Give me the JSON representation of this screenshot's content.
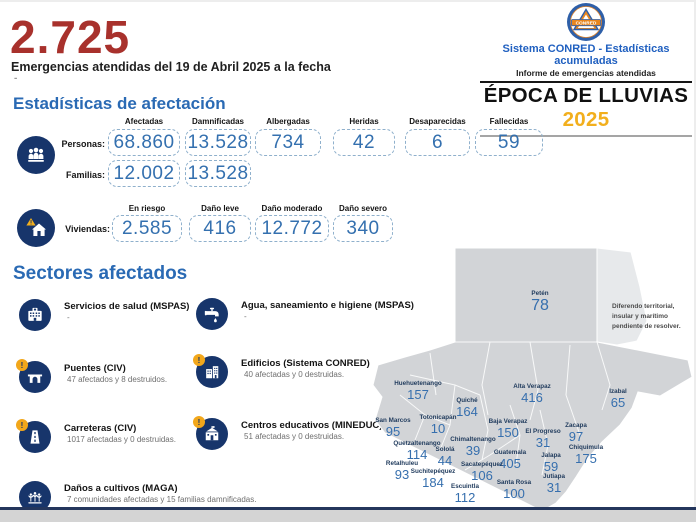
{
  "header": {
    "big_number": "2.725",
    "subtitle": "Emergencias atendidas del 19 de Abril 2025 a la fecha",
    "tiny_dash": "-",
    "logo_text": "CONRED",
    "org_line": "Sistema CONRED - Estadísticas acumuladas",
    "report_line": "Informe de emergencias atendidas",
    "season_title": "ÉPOCA DE LLUVIAS",
    "season_year": "2025"
  },
  "stats": {
    "heading": "Estadísticas de afectación",
    "personas_label": "Personas:",
    "familias_label": "Familias:",
    "viviendas_label": "Viviendas:",
    "personas_columns": [
      "Afectadas",
      "Damnificadas",
      "Albergadas",
      "Heridas",
      "Desaparecidas",
      "Fallecidas"
    ],
    "personas_values": [
      "68.860",
      "13.528",
      "734",
      "42",
      "6",
      "59"
    ],
    "familias_values": [
      "12.002",
      "13.528"
    ],
    "viviendas_columns": [
      "En riesgo",
      "Daño leve",
      "Daño moderado",
      "Daño severo"
    ],
    "viviendas_values": [
      "2.585",
      "416",
      "12.772",
      "340"
    ]
  },
  "sectors": {
    "heading": "Sectores afectados",
    "items": [
      {
        "title": "Servicios de salud (MSPAS)",
        "subtitle": "-",
        "icon": "hospital-icon"
      },
      {
        "title": "Agua, saneamiento e higiene (MSPAS)",
        "subtitle": "-",
        "icon": "faucet-icon"
      },
      {
        "title": "Puentes (CIV)",
        "subtitle": "47 afectados y 8 destruidos.",
        "icon": "bridge-icon"
      },
      {
        "title": "Edificios (Sistema CONRED)",
        "subtitle": "40 afectadas y 0 destruidas.",
        "icon": "building-icon"
      },
      {
        "title": "Carreteras (CIV)",
        "subtitle": "1017 afectadas y 0 destruidas.",
        "icon": "road-icon"
      },
      {
        "title": "Centros educativos (MINEDUC)",
        "subtitle": "51 afectadas y 0 destruidas.",
        "icon": "school-icon"
      },
      {
        "title": "Daños a cultivos (MAGA)",
        "subtitle": "7 comunidades afectadas y 15 familias damnificadas.",
        "icon": "crops-icon"
      }
    ]
  },
  "map": {
    "note": "Diferendo territorial, insular y marítimo pendiente de resolver.",
    "departments": [
      {
        "name": "Petén",
        "value": "78"
      },
      {
        "name": "Huehuetenango",
        "value": "157"
      },
      {
        "name": "Quiché",
        "value": "164"
      },
      {
        "name": "Alta Verapaz",
        "value": "416"
      },
      {
        "name": "Izabal",
        "value": "65"
      },
      {
        "name": "San Marcos",
        "value": "95"
      },
      {
        "name": "Totonicapán",
        "value": "10"
      },
      {
        "name": "Baja Verapaz",
        "value": "150"
      },
      {
        "name": "Zacapa",
        "value": "97"
      },
      {
        "name": "Quetzaltenango",
        "value": "114"
      },
      {
        "name": "Chimaltenango",
        "value": "39"
      },
      {
        "name": "El Progreso",
        "value": "31"
      },
      {
        "name": "Chiquimula",
        "value": "175"
      },
      {
        "name": "Sololá",
        "value": "44"
      },
      {
        "name": "Guatemala",
        "value": "405"
      },
      {
        "name": "Jalapa",
        "value": "59"
      },
      {
        "name": "Retalhuleu",
        "value": "93"
      },
      {
        "name": "Sacatepéquez",
        "value": "106"
      },
      {
        "name": "Santa Rosa",
        "value": "100"
      },
      {
        "name": "Jutiapa",
        "value": "31"
      },
      {
        "name": "Suchitepéquez",
        "value": "184"
      },
      {
        "name": "Escuintla",
        "value": "112"
      }
    ]
  },
  "colors": {
    "accent_red": "#a8312c",
    "heading_blue": "#2a6ab4",
    "value_blue": "#3470af",
    "navy": "#17356b",
    "accent_yellow": "#f2af1d",
    "map_gray": "#d2d4d7",
    "belize_gray": "#e7e9eb"
  }
}
